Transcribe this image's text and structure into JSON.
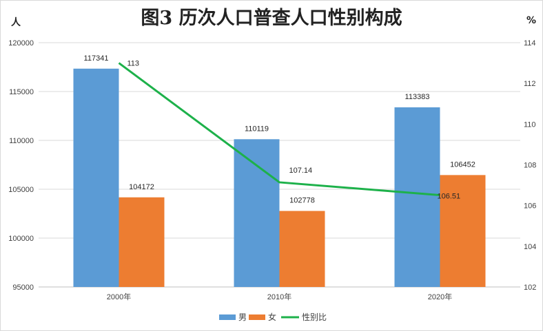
{
  "title": "图3  历次人口普查人口性别构成",
  "left_unit": "人",
  "right_unit": "%",
  "colors": {
    "male": "#5b9bd5",
    "female": "#ed7d31",
    "ratio": "#1db14a"
  },
  "chart_data": {
    "type": "bar",
    "categories": [
      "2000年",
      "2010年",
      "2020年"
    ],
    "series": [
      {
        "name": "男",
        "type": "bar",
        "axis": "left",
        "values": [
          117341,
          110119,
          113383
        ]
      },
      {
        "name": "女",
        "type": "bar",
        "axis": "left",
        "values": [
          104172,
          102778,
          106452
        ]
      },
      {
        "name": "性别比",
        "type": "line",
        "axis": "right",
        "values": [
          113,
          107.14,
          106.51
        ]
      }
    ],
    "data_labels": {
      "男": [
        "117341",
        "110119",
        "113383"
      ],
      "女": [
        "104172",
        "102778",
        "106452"
      ],
      "性别比": [
        "113",
        "107.14",
        "106.51"
      ]
    },
    "ylim_left": [
      95000,
      120000
    ],
    "yticks_left": [
      "95000",
      "100000",
      "105000",
      "110000",
      "115000",
      "120000"
    ],
    "ylim_right": [
      102,
      114
    ],
    "yticks_right": [
      "102",
      "104",
      "106",
      "108",
      "110",
      "112",
      "114"
    ],
    "grid": true,
    "legend_position": "bottom"
  }
}
